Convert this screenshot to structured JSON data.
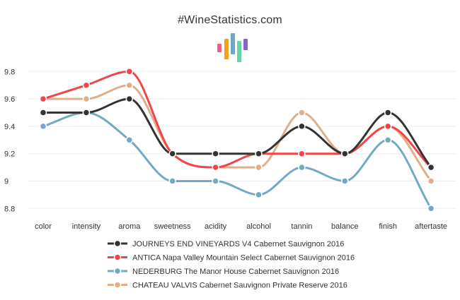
{
  "brand": {
    "title": "#WineStatistics.com",
    "logo_colors": [
      "#f25d8a",
      "#f0a31c",
      "#6fa8c7",
      "#62d6a4",
      "#8a63c9"
    ]
  },
  "chart_data": {
    "type": "line",
    "title": "#WineStatistics.com",
    "xlabel": "",
    "ylabel": "",
    "categories": [
      "color",
      "intensity",
      "aroma",
      "sweetness",
      "acidity",
      "alcohol",
      "tannin",
      "balance",
      "finish",
      "aftertaste"
    ],
    "ylim": [
      8.75,
      9.85
    ],
    "yticks": [
      8.8,
      9,
      9.2,
      9.4,
      9.6,
      9.8
    ],
    "ytick_labels": [
      "8.8",
      "9",
      "9.2",
      "9.4",
      "9.6",
      "9.8"
    ],
    "grid": true,
    "legend_position": "bottom",
    "series": [
      {
        "name": "JOURNEYS END VINEYARDS V4 Cabernet Sauvignon 2016",
        "color": "#333333",
        "values": [
          9.5,
          9.5,
          9.6,
          9.2,
          9.2,
          9.2,
          9.4,
          9.2,
          9.5,
          9.1
        ]
      },
      {
        "name": "ANTICA Napa Valley Mountain Select Cabernet Sauvignon 2016",
        "color": "#f0464b",
        "values": [
          9.6,
          9.7,
          9.8,
          9.2,
          9.1,
          9.2,
          9.2,
          9.2,
          9.4,
          9.1
        ]
      },
      {
        "name": "NEDERBURG The Manor House Cabernet Sauvignon 2016",
        "color": "#73a9c2",
        "values": [
          9.4,
          9.5,
          9.3,
          9.0,
          9.0,
          8.9,
          9.1,
          9.0,
          9.3,
          8.8
        ]
      },
      {
        "name": "CHATEAU VALVIS Cabernet Sauvignon Private Reserve 2016",
        "color": "#deaf8a",
        "values": [
          9.6,
          9.6,
          9.7,
          9.2,
          9.1,
          9.1,
          9.5,
          9.2,
          9.4,
          9.0
        ]
      }
    ]
  }
}
